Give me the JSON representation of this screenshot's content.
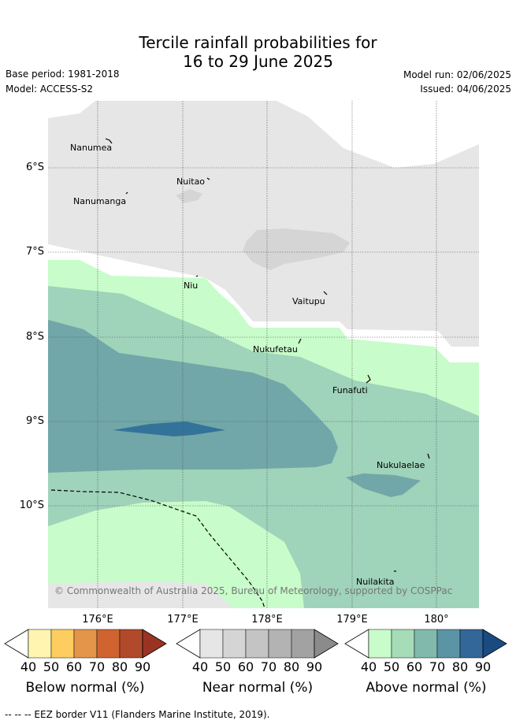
{
  "title_line1": "Tercile rainfall probabilities for",
  "title_line2": "16 to 29 June 2025",
  "base_period": "Base period: 1981-2018",
  "model": "Model: ACCESS-S2",
  "model_run": "Model run: 02/06/2025",
  "issued": "Issued: 04/06/2025",
  "copyright": "© Commonwealth of Australia 2025, Bureau of Meteorology, supported by COSPPac",
  "lat_labels": [
    "6°S",
    "7°S",
    "8°S",
    "9°S",
    "10°S"
  ],
  "lon_labels": [
    "176°E",
    "177°E",
    "178°E",
    "179°E",
    "180°"
  ],
  "islands": [
    {
      "name": "Nanumea"
    },
    {
      "name": "Nuitao"
    },
    {
      "name": "Nanumanga"
    },
    {
      "name": "Niu"
    },
    {
      "name": "Vaitupu"
    },
    {
      "name": "Nukufetau"
    },
    {
      "name": "Funafuti"
    },
    {
      "name": "Nukulaelae"
    },
    {
      "name": "Nuilakita"
    }
  ],
  "legends": [
    {
      "title": "Below normal (%)",
      "ticks": [
        "40",
        "50",
        "60",
        "70",
        "80",
        "90"
      ],
      "colors": [
        "#fff5b0",
        "#fdcd5f",
        "#e4954a",
        "#cf6430",
        "#b04a2b",
        "#993423"
      ]
    },
    {
      "title": "Near normal (%)",
      "ticks": [
        "40",
        "50",
        "60",
        "70",
        "80",
        "90"
      ],
      "colors": [
        "#e6e6e6",
        "#d5d5d5",
        "#c4c4c4",
        "#b3b3b3",
        "#a2a2a2",
        "#8b8b8b"
      ]
    },
    {
      "title": "Above normal (%)",
      "ticks": [
        "40",
        "50",
        "60",
        "70",
        "80",
        "90"
      ],
      "colors": [
        "#c8fcca",
        "#a6dcb8",
        "#82b9ad",
        "#5b94a4",
        "#336699",
        "#1a4b80"
      ]
    }
  ],
  "footer": "-- -- -- EEZ border V11 (Flanders Marine Institute, 2019)."
}
